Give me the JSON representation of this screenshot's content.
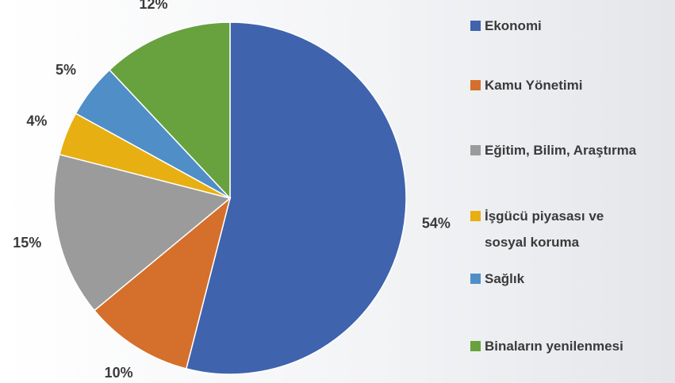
{
  "chart_data": {
    "type": "pie",
    "categories": [
      "Ekonomi",
      "Kamu Yönetimi",
      "Eğitim, Bilim, Araştırma",
      "İşgücü piyasası ve sosyal koruma",
      "Sağlık",
      "Binaların yenilenmesi"
    ],
    "values": [
      54,
      10,
      15,
      4,
      5,
      12
    ],
    "value_labels": [
      "54%",
      "10%",
      "15%",
      "4%",
      "5%",
      "12%"
    ],
    "colors": [
      "#3f63ad",
      "#d4702b",
      "#9b9b9b",
      "#e7af12",
      "#4f8ec7",
      "#67a23e"
    ]
  }
}
